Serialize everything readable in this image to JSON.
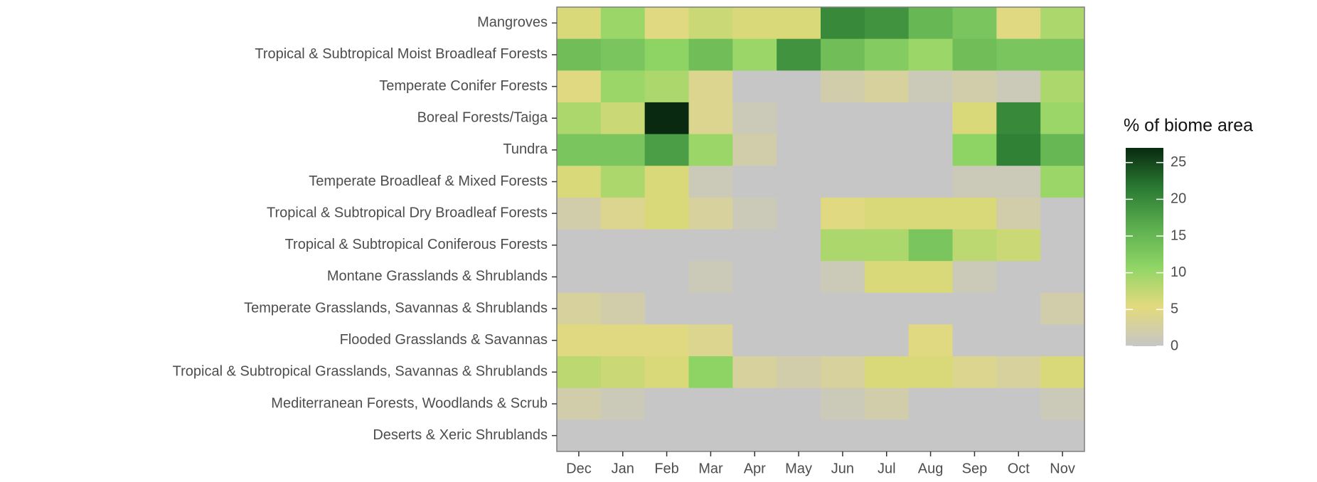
{
  "chart_data": {
    "type": "heatmap",
    "columns": [
      "Dec",
      "Jan",
      "Feb",
      "Mar",
      "Apr",
      "May",
      "Jun",
      "Jul",
      "Aug",
      "Sep",
      "Oct",
      "Nov"
    ],
    "rows": [
      "Mangroves",
      "Tropical & Subtropical Moist Broadleaf Forests",
      "Temperate Conifer Forests",
      "Boreal Forests/Taiga",
      "Tundra",
      "Temperate Broadleaf & Mixed Forests",
      "Tropical & Subtropical Dry Broadleaf Forests",
      "Tropical & Subtropical Coniferous Forests",
      "Montane Grasslands & Shrublands",
      "Temperate Grasslands, Savannas & Shrublands",
      "Flooded Grasslands & Savannas",
      "Tropical & Subtropical Grasslands, Savannas & Shrublands",
      "Mediterranean Forests, Woodlands & Scrub",
      "Deserts & Xeric Shrublands"
    ],
    "values": [
      [
        6,
        10,
        5,
        7,
        6,
        6,
        20,
        19,
        15,
        13,
        5,
        9
      ],
      [
        14,
        13,
        11,
        14,
        10,
        19,
        14,
        12,
        10,
        14,
        13,
        13
      ],
      [
        5,
        10,
        9,
        4,
        0,
        0,
        2,
        3,
        1,
        2,
        1,
        9
      ],
      [
        9,
        7,
        27,
        4,
        1,
        0,
        0,
        0,
        0,
        6,
        20,
        10
      ],
      [
        13,
        13,
        18,
        10,
        2,
        0,
        0,
        0,
        0,
        11,
        21,
        15
      ],
      [
        6,
        9,
        6,
        1,
        0,
        0,
        0,
        0,
        0,
        1,
        1,
        10
      ],
      [
        2,
        4,
        6,
        3,
        1,
        0,
        5,
        6,
        6,
        6,
        2,
        0
      ],
      [
        0,
        0,
        0,
        0,
        0,
        0,
        9,
        9,
        13,
        8,
        7,
        0
      ],
      [
        0,
        0,
        0,
        1,
        0,
        0,
        1,
        6,
        6,
        1,
        0,
        0
      ],
      [
        3,
        2,
        0,
        0,
        0,
        0,
        0,
        0,
        0,
        0,
        0,
        2
      ],
      [
        5,
        5,
        5,
        4,
        0,
        0,
        0,
        0,
        5,
        0,
        0,
        0
      ],
      [
        8,
        7,
        6,
        11,
        3,
        2,
        3,
        6,
        6,
        4,
        3,
        6
      ],
      [
        2,
        1,
        0,
        0,
        0,
        0,
        1,
        2,
        0,
        0,
        0,
        1
      ],
      [
        0,
        0,
        0,
        0,
        0,
        0,
        0,
        0,
        0,
        0,
        0,
        0
      ]
    ],
    "legend_title": "% of biome area",
    "clim": [
      0,
      27
    ],
    "cticks": [
      0,
      5,
      10,
      15,
      20,
      25
    ],
    "colors": [
      "#c6c6c6",
      "#e3da7c",
      "#8fd566",
      "#5cae4f",
      "#2a7a33",
      "#092a10"
    ]
  }
}
